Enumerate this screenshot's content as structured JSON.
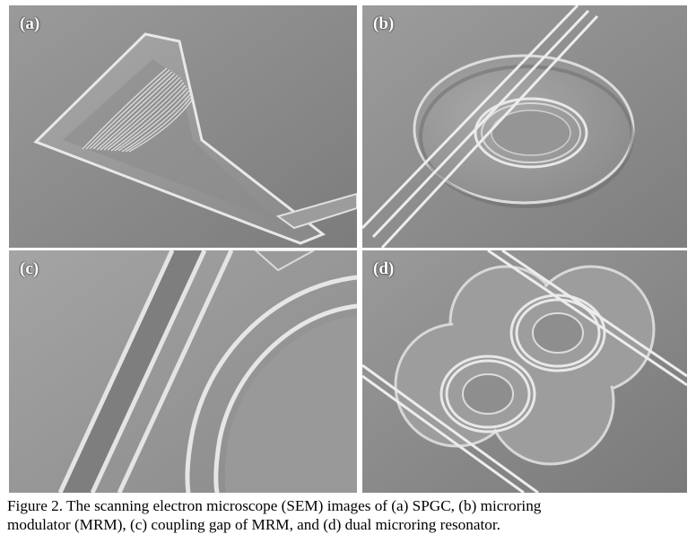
{
  "panels": [
    {
      "id": "a",
      "label": "(a)",
      "subject": "SPGC"
    },
    {
      "id": "b",
      "label": "(b)",
      "subject": "microring modulator (MRM)"
    },
    {
      "id": "c",
      "label": "(c)",
      "subject": "coupling gap of MRM"
    },
    {
      "id": "d",
      "label": "(d)",
      "subject": "dual microring resonator"
    }
  ],
  "caption": {
    "line1": "Figure 2. The scanning electron microscope (SEM) images of (a) SPGC, (b) microring",
    "line2": "modulator (MRM), (c) coupling gap of MRM, and (d) dual microring resonator."
  },
  "colors": {
    "sem_background": "#8c8c8c",
    "sem_highlight": "#e6e6e6",
    "sem_shadow": "#5a5a5a"
  }
}
